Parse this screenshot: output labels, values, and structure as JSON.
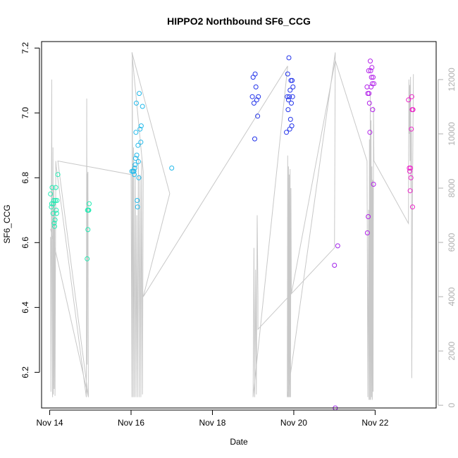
{
  "chart_data": {
    "type": "scatter",
    "title": "HIPPO2 Northbound SF6_CCG",
    "xlabel": "Date",
    "ylabel": "SF6_CCG",
    "x_unit": "day of November",
    "x_ticks": [
      {
        "day": 14,
        "label": "Nov 14"
      },
      {
        "day": 16,
        "label": "Nov 16"
      },
      {
        "day": 18,
        "label": "Nov 18"
      },
      {
        "day": 20,
        "label": "Nov 20"
      },
      {
        "day": 22,
        "label": "Nov 22"
      }
    ],
    "xlim": [
      13.8,
      23.5
    ],
    "ylim": [
      6.09,
      7.22
    ],
    "y_ticks": [
      {
        "value": 6.2,
        "label": "6.2"
      },
      {
        "value": 6.4,
        "label": "6.4"
      },
      {
        "value": 6.6,
        "label": "6.6"
      },
      {
        "value": 6.8,
        "label": "6.8"
      },
      {
        "value": 7.0,
        "label": "7.0"
      },
      {
        "value": 7.2,
        "label": "7.2"
      }
    ],
    "y2lim": [
      -100,
      13400
    ],
    "y2_ticks": [
      {
        "value": 0,
        "label": "0"
      },
      {
        "value": 2000,
        "label": "2000"
      },
      {
        "value": 4000,
        "label": "4000"
      },
      {
        "value": 6000,
        "label": "6000"
      },
      {
        "value": 8000,
        "label": "8000"
      },
      {
        "value": 10000,
        "label": "10000"
      },
      {
        "value": 12000,
        "label": "12000"
      }
    ],
    "colors": {
      "altitude_line": "#c8c8c8",
      "axis": "#000000",
      "right_axis": "#b0b0b0"
    },
    "points": [
      {
        "x": 14.02,
        "y": 6.75,
        "color": "#22eab2"
      },
      {
        "x": 14.04,
        "y": 6.71,
        "color": "#22eab2"
      },
      {
        "x": 14.05,
        "y": 6.72,
        "color": "#22eab2"
      },
      {
        "x": 14.06,
        "y": 6.77,
        "color": "#22eab2"
      },
      {
        "x": 14.08,
        "y": 6.69,
        "color": "#22eab2"
      },
      {
        "x": 14.09,
        "y": 6.72,
        "color": "#22eab2"
      },
      {
        "x": 14.1,
        "y": 6.73,
        "color": "#22eab2"
      },
      {
        "x": 14.11,
        "y": 6.66,
        "color": "#22eab2"
      },
      {
        "x": 14.12,
        "y": 6.65,
        "color": "#22eab2"
      },
      {
        "x": 14.13,
        "y": 6.67,
        "color": "#22eab2"
      },
      {
        "x": 14.14,
        "y": 6.73,
        "color": "#22eab2"
      },
      {
        "x": 14.15,
        "y": 6.77,
        "color": "#22eab2"
      },
      {
        "x": 14.16,
        "y": 6.7,
        "color": "#22eab2"
      },
      {
        "x": 14.17,
        "y": 6.69,
        "color": "#22eab2"
      },
      {
        "x": 14.18,
        "y": 6.73,
        "color": "#22eab2"
      },
      {
        "x": 14.2,
        "y": 6.81,
        "color": "#22eab2"
      },
      {
        "x": 14.92,
        "y": 6.55,
        "color": "#22eab2"
      },
      {
        "x": 14.93,
        "y": 6.7,
        "color": "#22eab2"
      },
      {
        "x": 14.94,
        "y": 6.64,
        "color": "#22eab2"
      },
      {
        "x": 14.95,
        "y": 6.7,
        "color": "#22eab2"
      },
      {
        "x": 14.96,
        "y": 6.7,
        "color": "#22eab2"
      },
      {
        "x": 14.97,
        "y": 6.72,
        "color": "#22eab2"
      },
      {
        "x": 16.02,
        "y": 6.82,
        "color": "#22b9ea"
      },
      {
        "x": 16.05,
        "y": 6.82,
        "color": "#22b9ea"
      },
      {
        "x": 16.07,
        "y": 6.82,
        "color": "#22b9ea"
      },
      {
        "x": 16.08,
        "y": 6.81,
        "color": "#22b9ea"
      },
      {
        "x": 16.09,
        "y": 6.83,
        "color": "#22b9ea"
      },
      {
        "x": 16.1,
        "y": 6.84,
        "color": "#22b9ea"
      },
      {
        "x": 16.11,
        "y": 6.86,
        "color": "#22b9ea"
      },
      {
        "x": 16.12,
        "y": 6.94,
        "color": "#22b9ea"
      },
      {
        "x": 16.13,
        "y": 7.03,
        "color": "#22b9ea"
      },
      {
        "x": 16.14,
        "y": 6.87,
        "color": "#22b9ea"
      },
      {
        "x": 16.15,
        "y": 6.73,
        "color": "#22b9ea"
      },
      {
        "x": 16.16,
        "y": 6.71,
        "color": "#22b9ea"
      },
      {
        "x": 16.17,
        "y": 6.9,
        "color": "#22b9ea"
      },
      {
        "x": 16.18,
        "y": 6.85,
        "color": "#22b9ea"
      },
      {
        "x": 16.19,
        "y": 6.8,
        "color": "#22b9ea"
      },
      {
        "x": 16.2,
        "y": 7.06,
        "color": "#22b9ea"
      },
      {
        "x": 16.22,
        "y": 6.95,
        "color": "#22b9ea"
      },
      {
        "x": 16.24,
        "y": 6.91,
        "color": "#22b9ea"
      },
      {
        "x": 16.25,
        "y": 6.96,
        "color": "#22b9ea"
      },
      {
        "x": 16.28,
        "y": 7.02,
        "color": "#22b9ea"
      },
      {
        "x": 17.0,
        "y": 6.83,
        "color": "#22b9ea"
      },
      {
        "x": 18.98,
        "y": 7.05,
        "color": "#2233ea"
      },
      {
        "x": 19.0,
        "y": 7.11,
        "color": "#2233ea"
      },
      {
        "x": 19.02,
        "y": 7.03,
        "color": "#2233ea"
      },
      {
        "x": 19.04,
        "y": 6.92,
        "color": "#2233ea"
      },
      {
        "x": 19.05,
        "y": 7.12,
        "color": "#2233ea"
      },
      {
        "x": 19.07,
        "y": 7.08,
        "color": "#2233ea"
      },
      {
        "x": 19.09,
        "y": 7.04,
        "color": "#2233ea"
      },
      {
        "x": 19.11,
        "y": 6.99,
        "color": "#2233ea"
      },
      {
        "x": 19.13,
        "y": 7.05,
        "color": "#2233ea"
      },
      {
        "x": 19.82,
        "y": 6.94,
        "color": "#2233ea"
      },
      {
        "x": 19.84,
        "y": 7.05,
        "color": "#2233ea"
      },
      {
        "x": 19.85,
        "y": 7.12,
        "color": "#2233ea"
      },
      {
        "x": 19.86,
        "y": 7.01,
        "color": "#2233ea"
      },
      {
        "x": 19.87,
        "y": 7.04,
        "color": "#2233ea"
      },
      {
        "x": 19.88,
        "y": 7.17,
        "color": "#2233ea"
      },
      {
        "x": 19.89,
        "y": 7.05,
        "color": "#2233ea"
      },
      {
        "x": 19.9,
        "y": 6.95,
        "color": "#2233ea"
      },
      {
        "x": 19.91,
        "y": 7.07,
        "color": "#2233ea"
      },
      {
        "x": 19.92,
        "y": 6.98,
        "color": "#2233ea"
      },
      {
        "x": 19.93,
        "y": 7.1,
        "color": "#2233ea"
      },
      {
        "x": 19.94,
        "y": 7.03,
        "color": "#2233ea"
      },
      {
        "x": 19.95,
        "y": 6.96,
        "color": "#2233ea"
      },
      {
        "x": 19.96,
        "y": 7.1,
        "color": "#2233ea"
      },
      {
        "x": 19.97,
        "y": 7.05,
        "color": "#2233ea"
      },
      {
        "x": 19.98,
        "y": 7.08,
        "color": "#2233ea"
      },
      {
        "x": 21.0,
        "y": 6.53,
        "color": "#a022ea"
      },
      {
        "x": 21.02,
        "y": 6.09,
        "color": "#a022ea"
      },
      {
        "x": 21.08,
        "y": 6.59,
        "color": "#a022ea"
      },
      {
        "x": 21.8,
        "y": 7.08,
        "color": "#b322ea"
      },
      {
        "x": 21.81,
        "y": 6.63,
        "color": "#b322ea"
      },
      {
        "x": 21.82,
        "y": 7.06,
        "color": "#b322ea"
      },
      {
        "x": 21.83,
        "y": 6.68,
        "color": "#b322ea"
      },
      {
        "x": 21.84,
        "y": 7.13,
        "color": "#b322ea"
      },
      {
        "x": 21.85,
        "y": 7.06,
        "color": "#b322ea"
      },
      {
        "x": 21.86,
        "y": 7.03,
        "color": "#b322ea"
      },
      {
        "x": 21.87,
        "y": 6.94,
        "color": "#b322ea"
      },
      {
        "x": 21.88,
        "y": 7.16,
        "color": "#b322ea"
      },
      {
        "x": 21.89,
        "y": 7.13,
        "color": "#b322ea"
      },
      {
        "x": 21.9,
        "y": 7.08,
        "color": "#b322ea"
      },
      {
        "x": 21.91,
        "y": 7.11,
        "color": "#b322ea"
      },
      {
        "x": 21.92,
        "y": 7.14,
        "color": "#b322ea"
      },
      {
        "x": 21.93,
        "y": 7.09,
        "color": "#b322ea"
      },
      {
        "x": 21.94,
        "y": 7.01,
        "color": "#b322ea"
      },
      {
        "x": 21.95,
        "y": 7.11,
        "color": "#b322ea"
      },
      {
        "x": 21.96,
        "y": 6.78,
        "color": "#b322ea"
      },
      {
        "x": 21.97,
        "y": 7.09,
        "color": "#b322ea"
      },
      {
        "x": 22.82,
        "y": 7.04,
        "color": "#ea22c8"
      },
      {
        "x": 22.84,
        "y": 6.83,
        "color": "#ea22c8"
      },
      {
        "x": 22.85,
        "y": 6.82,
        "color": "#ea22c8"
      },
      {
        "x": 22.86,
        "y": 6.76,
        "color": "#ea22c8"
      },
      {
        "x": 22.87,
        "y": 6.83,
        "color": "#ea22c8"
      },
      {
        "x": 22.88,
        "y": 6.8,
        "color": "#ea22c8"
      },
      {
        "x": 22.89,
        "y": 6.95,
        "color": "#ea22c8"
      },
      {
        "x": 22.9,
        "y": 7.05,
        "color": "#ea22c8"
      },
      {
        "x": 22.91,
        "y": 7.01,
        "color": "#ea22c8"
      },
      {
        "x": 22.92,
        "y": 6.71,
        "color": "#ea22c8"
      },
      {
        "x": 22.93,
        "y": 7.01,
        "color": "#ea22c8"
      }
    ],
    "altitude_series": [
      [
        14.02,
        6200
      ],
      [
        14.03,
        500
      ],
      [
        14.04,
        6600
      ],
      [
        14.05,
        12000
      ],
      [
        14.06,
        3500
      ],
      [
        14.07,
        300
      ],
      [
        14.08,
        9500
      ],
      [
        14.09,
        400
      ],
      [
        14.1,
        8000
      ],
      [
        14.11,
        600
      ],
      [
        14.12,
        7500
      ],
      [
        14.13,
        350
      ],
      [
        14.15,
        9000
      ],
      [
        14.16,
        8800
      ],
      [
        14.9,
        300
      ],
      [
        14.91,
        11300
      ],
      [
        14.92,
        1500
      ],
      [
        14.93,
        8500
      ],
      [
        14.94,
        8600
      ],
      [
        14.95,
        300
      ],
      [
        14.02,
        6500
      ],
      [
        14.95,
        300
      ],
      [
        14.2,
        9000
      ],
      [
        16.0,
        8500
      ],
      [
        16.02,
        300
      ],
      [
        16.03,
        13000
      ],
      [
        16.05,
        300
      ],
      [
        16.06,
        9500
      ],
      [
        16.08,
        300
      ],
      [
        16.1,
        8800
      ],
      [
        16.12,
        300
      ],
      [
        16.14,
        7000
      ],
      [
        16.16,
        300
      ],
      [
        16.18,
        9200
      ],
      [
        16.2,
        300
      ],
      [
        16.22,
        8500
      ],
      [
        16.24,
        300
      ],
      [
        16.26,
        9000
      ],
      [
        16.28,
        400
      ],
      [
        16.3,
        8600
      ],
      [
        16.02,
        13000
      ],
      [
        16.95,
        7800
      ],
      [
        16.3,
        4000
      ],
      [
        19.85,
        12500
      ],
      [
        19.0,
        300
      ],
      [
        19.02,
        5800
      ],
      [
        19.04,
        300
      ],
      [
        19.06,
        5000
      ],
      [
        19.08,
        400
      ],
      [
        19.1,
        7000
      ],
      [
        19.12,
        4000
      ],
      [
        19.12,
        2800
      ],
      [
        21.0,
        5800
      ],
      [
        21.02,
        13000
      ],
      [
        19.84,
        300
      ],
      [
        19.85,
        9200
      ],
      [
        19.86,
        300
      ],
      [
        19.87,
        8800
      ],
      [
        19.88,
        300
      ],
      [
        19.89,
        8500
      ],
      [
        19.9,
        300
      ],
      [
        19.91,
        8700
      ],
      [
        19.92,
        300
      ],
      [
        19.93,
        8000
      ],
      [
        19.94,
        4100
      ],
      [
        21.02,
        12700
      ],
      [
        21.8,
        9000
      ],
      [
        21.82,
        300
      ],
      [
        21.84,
        7200
      ],
      [
        21.85,
        200
      ],
      [
        21.86,
        9800
      ],
      [
        21.87,
        200
      ],
      [
        21.88,
        11500
      ],
      [
        21.89,
        200
      ],
      [
        21.9,
        10500
      ],
      [
        21.91,
        300
      ],
      [
        21.92,
        8800
      ],
      [
        21.93,
        200
      ],
      [
        21.94,
        8300
      ],
      [
        21.95,
        500
      ],
      [
        21.96,
        11000
      ],
      [
        21.97,
        9000
      ],
      [
        22.82,
        6700
      ],
      [
        22.83,
        12000
      ],
      [
        22.84,
        10000
      ],
      [
        22.85,
        11800
      ],
      [
        22.86,
        9000
      ],
      [
        22.87,
        12100
      ],
      [
        22.88,
        8000
      ],
      [
        22.89,
        10200
      ],
      [
        22.9,
        1000
      ],
      [
        22.92,
        8000
      ],
      [
        22.94,
        12200
      ]
    ]
  }
}
